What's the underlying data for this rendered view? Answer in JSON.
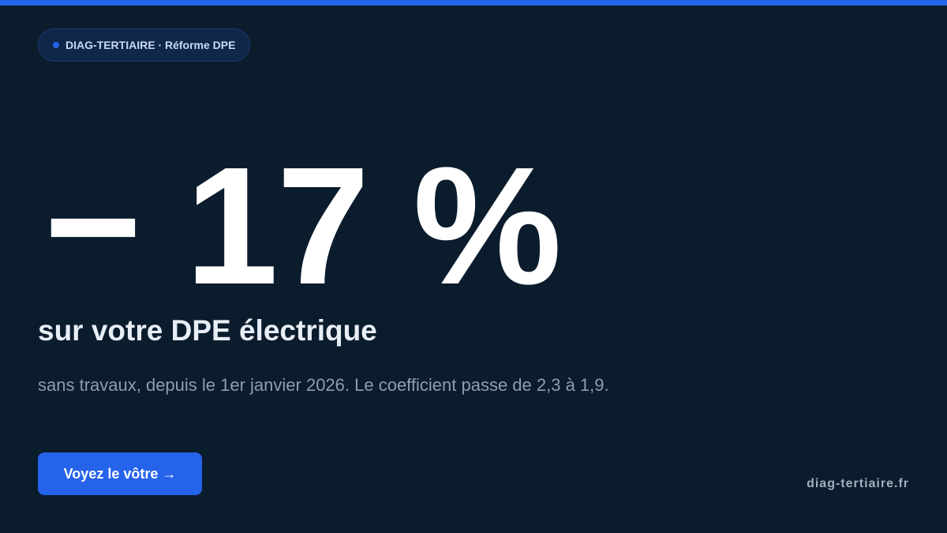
{
  "colors": {
    "accent": "#2563eb",
    "background": "#0b1c2d"
  },
  "badge": {
    "icon": "dot-icon",
    "text": "DIAG-TERTIAIRE · Réforme DPE"
  },
  "hero": {
    "figure": "− 17 %",
    "subtitle": "sur votre DPE électrique",
    "description": "sans travaux, depuis le 1er janvier 2026. Le coefficient passe de 2,3 à 1,9."
  },
  "cta": {
    "label": "Voyez le vôtre →"
  },
  "footer": {
    "site": "diag-tertiaire.fr"
  }
}
